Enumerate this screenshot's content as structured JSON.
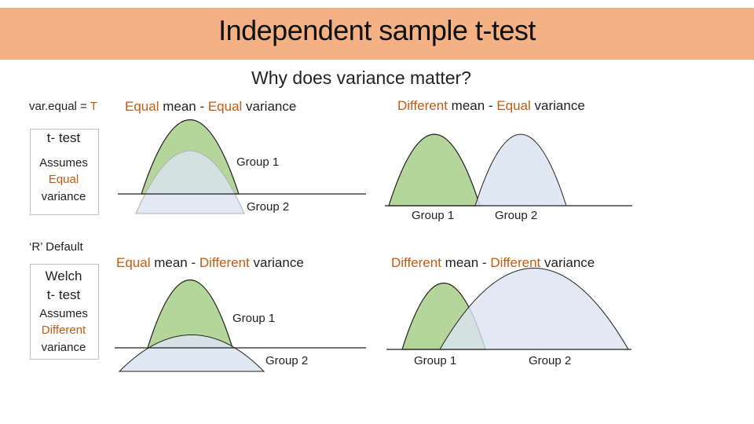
{
  "header": {
    "title": "Independent sample t-test",
    "subtitle": "Why does variance matter?"
  },
  "left_panel": {
    "var_equal_prefix": "var.equal = ",
    "var_equal_value": "T",
    "ttest_label": "t- test",
    "assumes_label": "Assumes",
    "assumes_equal": "Equal",
    "variance_label": "variance",
    "r_default": "‘R’ Default",
    "welch_label": "Welch",
    "welch_ttest_label": "t- test",
    "welch_assumes": "Assumes",
    "welch_different": "Different",
    "welch_variance": "variance"
  },
  "panels": {
    "top_left": {
      "heading_a": "Equal",
      "heading_b": " mean - ",
      "heading_c": "Equal",
      "heading_d": " variance",
      "group1": "Group 1",
      "group2": "Group 2"
    },
    "top_right": {
      "heading_a": "Different",
      "heading_b": " mean - ",
      "heading_c": "Equal",
      "heading_d": " variance",
      "group1": "Group 1",
      "group2": "Group 2"
    },
    "bottom_left": {
      "heading_a": "Equal",
      "heading_b": " mean - ",
      "heading_c": "Different",
      "heading_d": " variance",
      "group1": "Group 1",
      "group2": "Group 2"
    },
    "bottom_right": {
      "heading_a": "Different",
      "heading_b": " mean - ",
      "heading_c": "Different",
      "heading_d": " variance",
      "group1": "Group 1",
      "group2": "Group 2"
    }
  },
  "colors": {
    "title_bar": "#f4b183",
    "accent_orange": "#c55a11",
    "group1_fill": "#b5d69a",
    "group2_fill": "#dbe4f1"
  }
}
